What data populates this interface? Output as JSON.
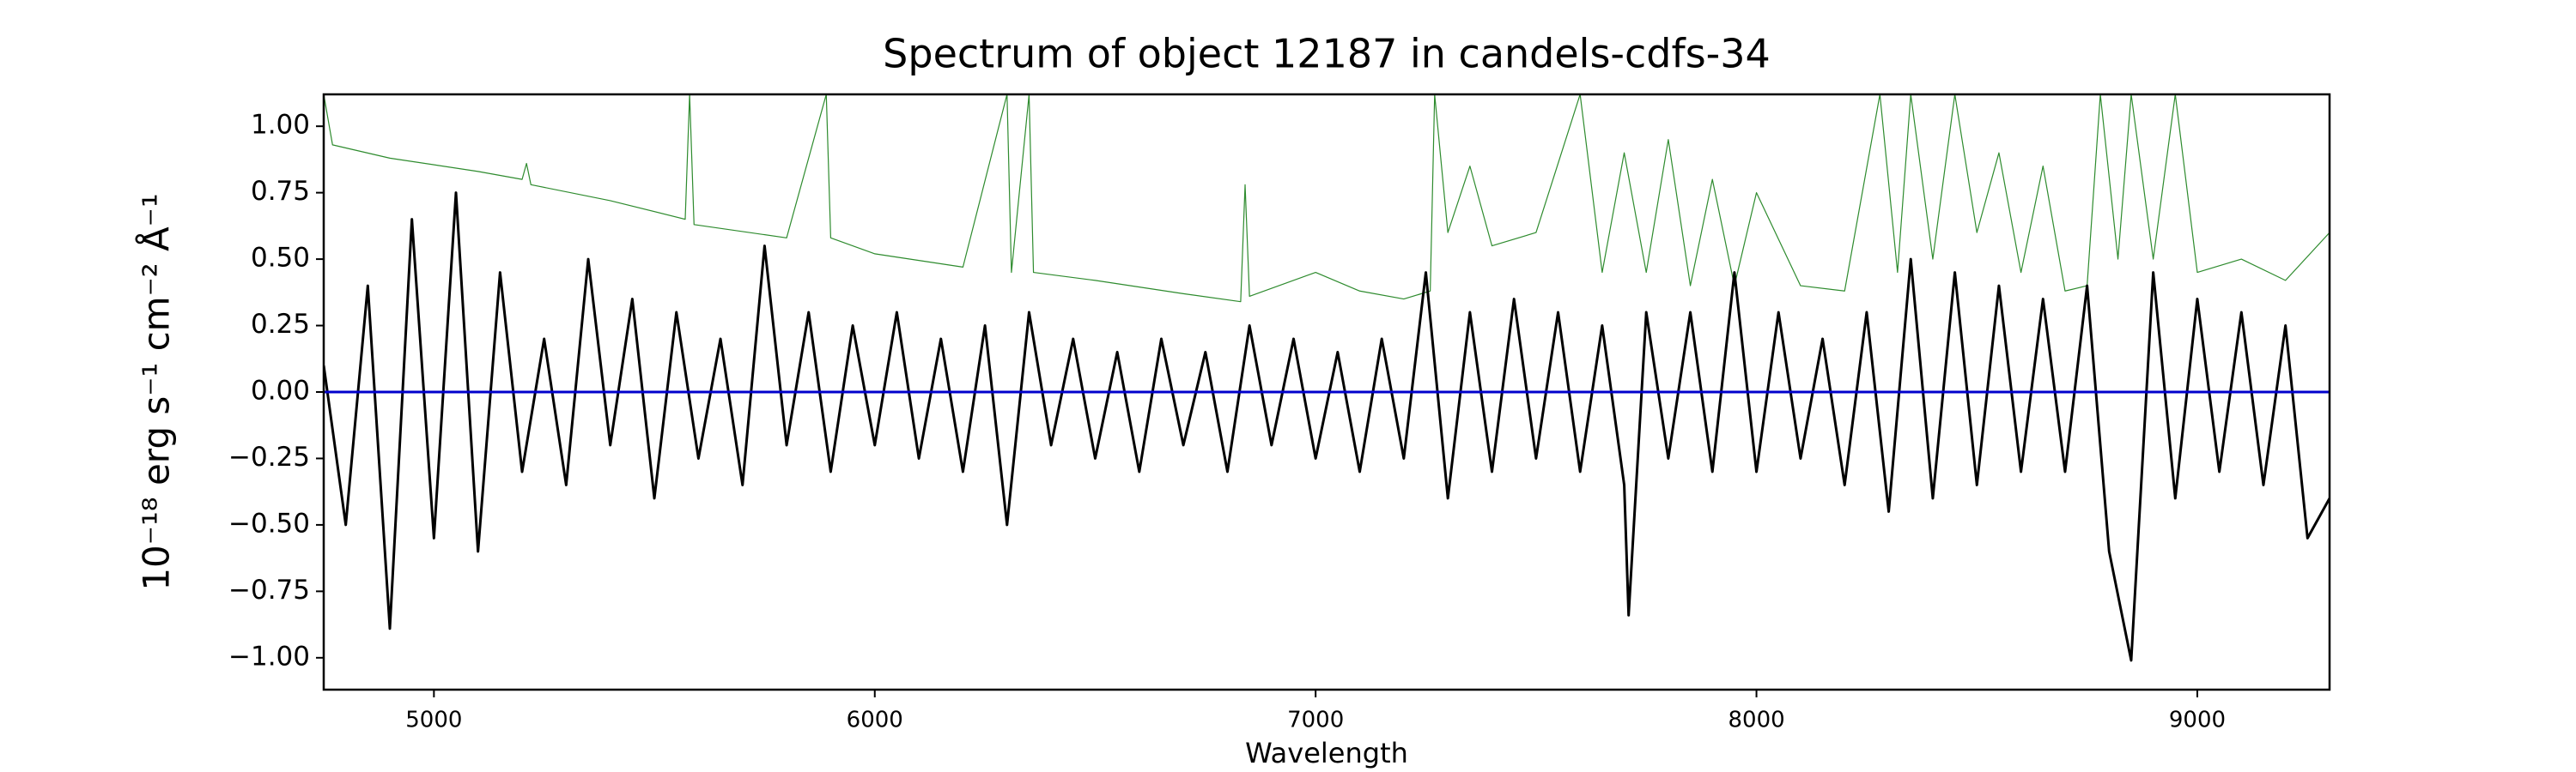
{
  "chart_data": {
    "type": "line",
    "title": "Spectrum of object 12187 in candels-cdfs-34",
    "x_label": "Wavelength",
    "y_label": "10⁻¹⁸ erg s⁻¹ cm⁻² Å⁻¹",
    "xlim": [
      4750,
      9300
    ],
    "ylim": [
      -1.12,
      1.12
    ],
    "xticks": [
      5000,
      6000,
      7000,
      8000,
      9000
    ],
    "yticks": [
      {
        "value": -1,
        "label": "−1.00"
      },
      {
        "value": -0.75,
        "label": "−0.75"
      },
      {
        "value": -0.5,
        "label": "−0.50"
      },
      {
        "value": -0.25,
        "label": "−0.25"
      },
      {
        "value": 0,
        "label": "0.00"
      },
      {
        "value": 0.25,
        "label": "0.25"
      },
      {
        "value": 0.5,
        "label": "0.50"
      },
      {
        "value": 0.75,
        "label": "0.75"
      },
      {
        "value": 1,
        "label": "1.00"
      }
    ],
    "series": [
      {
        "color": "#2e8b2e",
        "width": 1.2,
        "x": [
          4750,
          4770,
          4900,
          5100,
          5200,
          5210,
          5220,
          5400,
          5570,
          5580,
          5590,
          5800,
          5890,
          5900,
          6000,
          6200,
          6300,
          6310,
          6350,
          6360,
          6500,
          6700,
          6830,
          6840,
          6850,
          7000,
          7100,
          7200,
          7260,
          7270,
          7300,
          7350,
          7400,
          7500,
          7600,
          7650,
          7700,
          7750,
          7800,
          7850,
          7900,
          7950,
          8000,
          8100,
          8200,
          8280,
          8320,
          8350,
          8400,
          8450,
          8500,
          8550,
          8600,
          8650,
          8700,
          8750,
          8780,
          8820,
          8850,
          8900,
          8950,
          9000,
          9100,
          9200,
          9300
        ],
        "values": [
          1.12,
          0.93,
          0.88,
          0.83,
          0.8,
          0.86,
          0.78,
          0.72,
          0.65,
          1.12,
          0.63,
          0.58,
          1.12,
          0.58,
          0.52,
          0.47,
          1.12,
          0.45,
          1.12,
          0.45,
          0.42,
          0.37,
          0.34,
          0.78,
          0.36,
          0.45,
          0.38,
          0.35,
          0.38,
          1.12,
          0.6,
          0.85,
          0.55,
          0.6,
          1.12,
          0.45,
          0.9,
          0.45,
          0.95,
          0.4,
          0.8,
          0.4,
          0.75,
          0.4,
          0.38,
          1.12,
          0.45,
          1.12,
          0.5,
          1.12,
          0.6,
          0.9,
          0.45,
          0.85,
          0.38,
          0.4,
          1.12,
          0.5,
          1.12,
          0.5,
          1.12,
          0.45,
          0.5,
          0.42,
          0.6
        ]
      },
      {
        "color": "#000000",
        "width": 3,
        "x": [
          4750,
          4800,
          4850,
          4900,
          4950,
          5000,
          5050,
          5100,
          5150,
          5200,
          5250,
          5300,
          5350,
          5400,
          5450,
          5500,
          5550,
          5600,
          5650,
          5700,
          5750,
          5800,
          5850,
          5900,
          5950,
          6000,
          6050,
          6100,
          6150,
          6200,
          6250,
          6300,
          6350,
          6400,
          6450,
          6500,
          6550,
          6600,
          6650,
          6700,
          6750,
          6800,
          6850,
          6900,
          6950,
          7000,
          7050,
          7100,
          7150,
          7200,
          7250,
          7300,
          7350,
          7400,
          7450,
          7500,
          7550,
          7600,
          7650,
          7700,
          7710,
          7750,
          7800,
          7850,
          7900,
          7950,
          8000,
          8050,
          8100,
          8150,
          8200,
          8250,
          8300,
          8350,
          8400,
          8450,
          8500,
          8550,
          8600,
          8650,
          8700,
          8750,
          8800,
          8850,
          8900,
          8950,
          9000,
          9050,
          9100,
          9150,
          9200,
          9250,
          9300
        ],
        "values": [
          0.1,
          -0.5,
          0.4,
          -0.89,
          0.65,
          -0.55,
          0.75,
          -0.6,
          0.45,
          -0.3,
          0.2,
          -0.35,
          0.5,
          -0.2,
          0.35,
          -0.4,
          0.3,
          -0.25,
          0.2,
          -0.35,
          0.55,
          -0.2,
          0.3,
          -0.3,
          0.25,
          -0.2,
          0.3,
          -0.25,
          0.2,
          -0.3,
          0.25,
          -0.5,
          0.3,
          -0.2,
          0.2,
          -0.25,
          0.15,
          -0.3,
          0.2,
          -0.2,
          0.15,
          -0.3,
          0.25,
          -0.2,
          0.2,
          -0.25,
          0.15,
          -0.3,
          0.2,
          -0.25,
          0.45,
          -0.4,
          0.3,
          -0.3,
          0.35,
          -0.25,
          0.3,
          -0.3,
          0.25,
          -0.35,
          -0.84,
          0.3,
          -0.25,
          0.3,
          -0.3,
          0.45,
          -0.3,
          0.3,
          -0.25,
          0.2,
          -0.35,
          0.3,
          -0.45,
          0.5,
          -0.4,
          0.45,
          -0.35,
          0.4,
          -0.3,
          0.35,
          -0.3,
          0.4,
          -0.6,
          -1.01,
          0.45,
          -0.4,
          0.35,
          -0.3,
          0.3,
          -0.35,
          0.25,
          -0.55,
          -0.4
        ]
      },
      {
        "color": "#0000cc",
        "width": 3,
        "x": [
          4750,
          9300
        ],
        "values": [
          0,
          0
        ]
      }
    ]
  }
}
